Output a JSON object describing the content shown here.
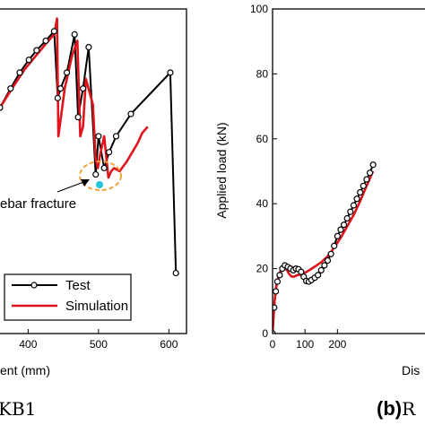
{
  "captions": {
    "left_caption": "KB1",
    "right_caption_prefix": "(b)",
    "right_caption_rest": "R"
  },
  "colors": {
    "test": "#000000",
    "simulation": "#e0141c",
    "marker_fill": "#ffffff",
    "fracture_ring": "#f2a23a",
    "fracture_dot": "#22c6d6"
  },
  "chart_data": [
    {
      "type": "line",
      "panel": "a",
      "xlabel": "ent (mm)",
      "ylabel": "",
      "xlim": [
        360,
        625
      ],
      "ylim": [
        -2,
        100
      ],
      "x_ticks": [
        400,
        500,
        600
      ],
      "x_tick_labels": [
        "400",
        "500",
        "600"
      ],
      "y_ticks": [],
      "annotation": {
        "text": "ebar fracture",
        "x": 497,
        "y": 45
      },
      "legend": {
        "position": "bottom-right",
        "entries": [
          "Test",
          "Simulation"
        ]
      },
      "series": [
        {
          "name": "Test",
          "style": "line-with-open-circle-markers",
          "x": [
            360,
            375,
            388,
            401,
            412,
            425,
            437,
            442,
            446,
            455,
            466,
            471,
            478,
            486,
            496,
            500,
            508,
            515,
            525,
            546,
            602,
            610
          ],
          "y": [
            69,
            75,
            80,
            84,
            87,
            90,
            93,
            72,
            75,
            80,
            92,
            66,
            75,
            88,
            48,
            60,
            50,
            55,
            60,
            67,
            80,
            17
          ]
        },
        {
          "name": "Simulation",
          "style": "line",
          "x": [
            360,
            380,
            395,
            410,
            425,
            437,
            441,
            443,
            446,
            452,
            462,
            470,
            474,
            478,
            482,
            492,
            496,
            499,
            502,
            508,
            514,
            518,
            522,
            530,
            540,
            548,
            556,
            562,
            570
          ],
          "y": [
            69,
            76,
            81,
            85,
            89,
            92,
            97,
            60,
            65,
            75,
            85,
            90,
            60,
            63,
            78,
            70,
            53,
            50,
            54,
            60,
            47,
            49,
            50,
            49,
            52,
            55,
            58,
            61,
            63
          ]
        }
      ]
    },
    {
      "type": "line",
      "panel": "b",
      "xlabel": "Dis",
      "ylabel": "Applied load (kN)",
      "xlim": [
        0,
        470
      ],
      "ylim": [
        0,
        100
      ],
      "x_ticks": [
        0,
        100,
        200
      ],
      "x_tick_labels": [
        "0",
        "100",
        "200"
      ],
      "y_ticks": [
        0,
        20,
        40,
        60,
        80,
        100
      ],
      "y_tick_labels": [
        "0",
        "20",
        "40",
        "60",
        "80",
        "100"
      ],
      "series": [
        {
          "name": "Test",
          "style": "line-with-open-circle-markers",
          "x": [
            0,
            5,
            10,
            15,
            22,
            30,
            38,
            47,
            55,
            64,
            72,
            80,
            88,
            96,
            104,
            112,
            120,
            130,
            140,
            150,
            160,
            170,
            180,
            190,
            200,
            210,
            220,
            230,
            240,
            250,
            260,
            270,
            280,
            290,
            300,
            310
          ],
          "y": [
            0,
            8,
            13,
            16,
            18,
            20,
            21,
            20.5,
            20,
            19.5,
            20,
            19.8,
            19,
            17.5,
            16.2,
            16,
            16.5,
            17.2,
            18,
            19.5,
            21,
            22.5,
            24.5,
            27,
            30,
            32,
            33.5,
            35.5,
            37.5,
            39.5,
            41.5,
            43.5,
            45.5,
            47.5,
            49.5,
            52
          ]
        },
        {
          "name": "Simulation",
          "style": "line",
          "x": [
            0,
            6,
            12,
            20,
            28,
            35,
            42,
            50,
            58,
            66,
            76,
            90,
            110,
            130,
            150,
            170,
            190,
            210,
            230,
            250,
            270,
            290,
            310
          ],
          "y": [
            0,
            10,
            15,
            18,
            20,
            20.8,
            20,
            18.5,
            17.6,
            17.5,
            18,
            18.2,
            19.3,
            20.6,
            22,
            23.8,
            26.5,
            29.5,
            33,
            36.5,
            40.8,
            45.5,
            50
          ]
        }
      ]
    }
  ]
}
